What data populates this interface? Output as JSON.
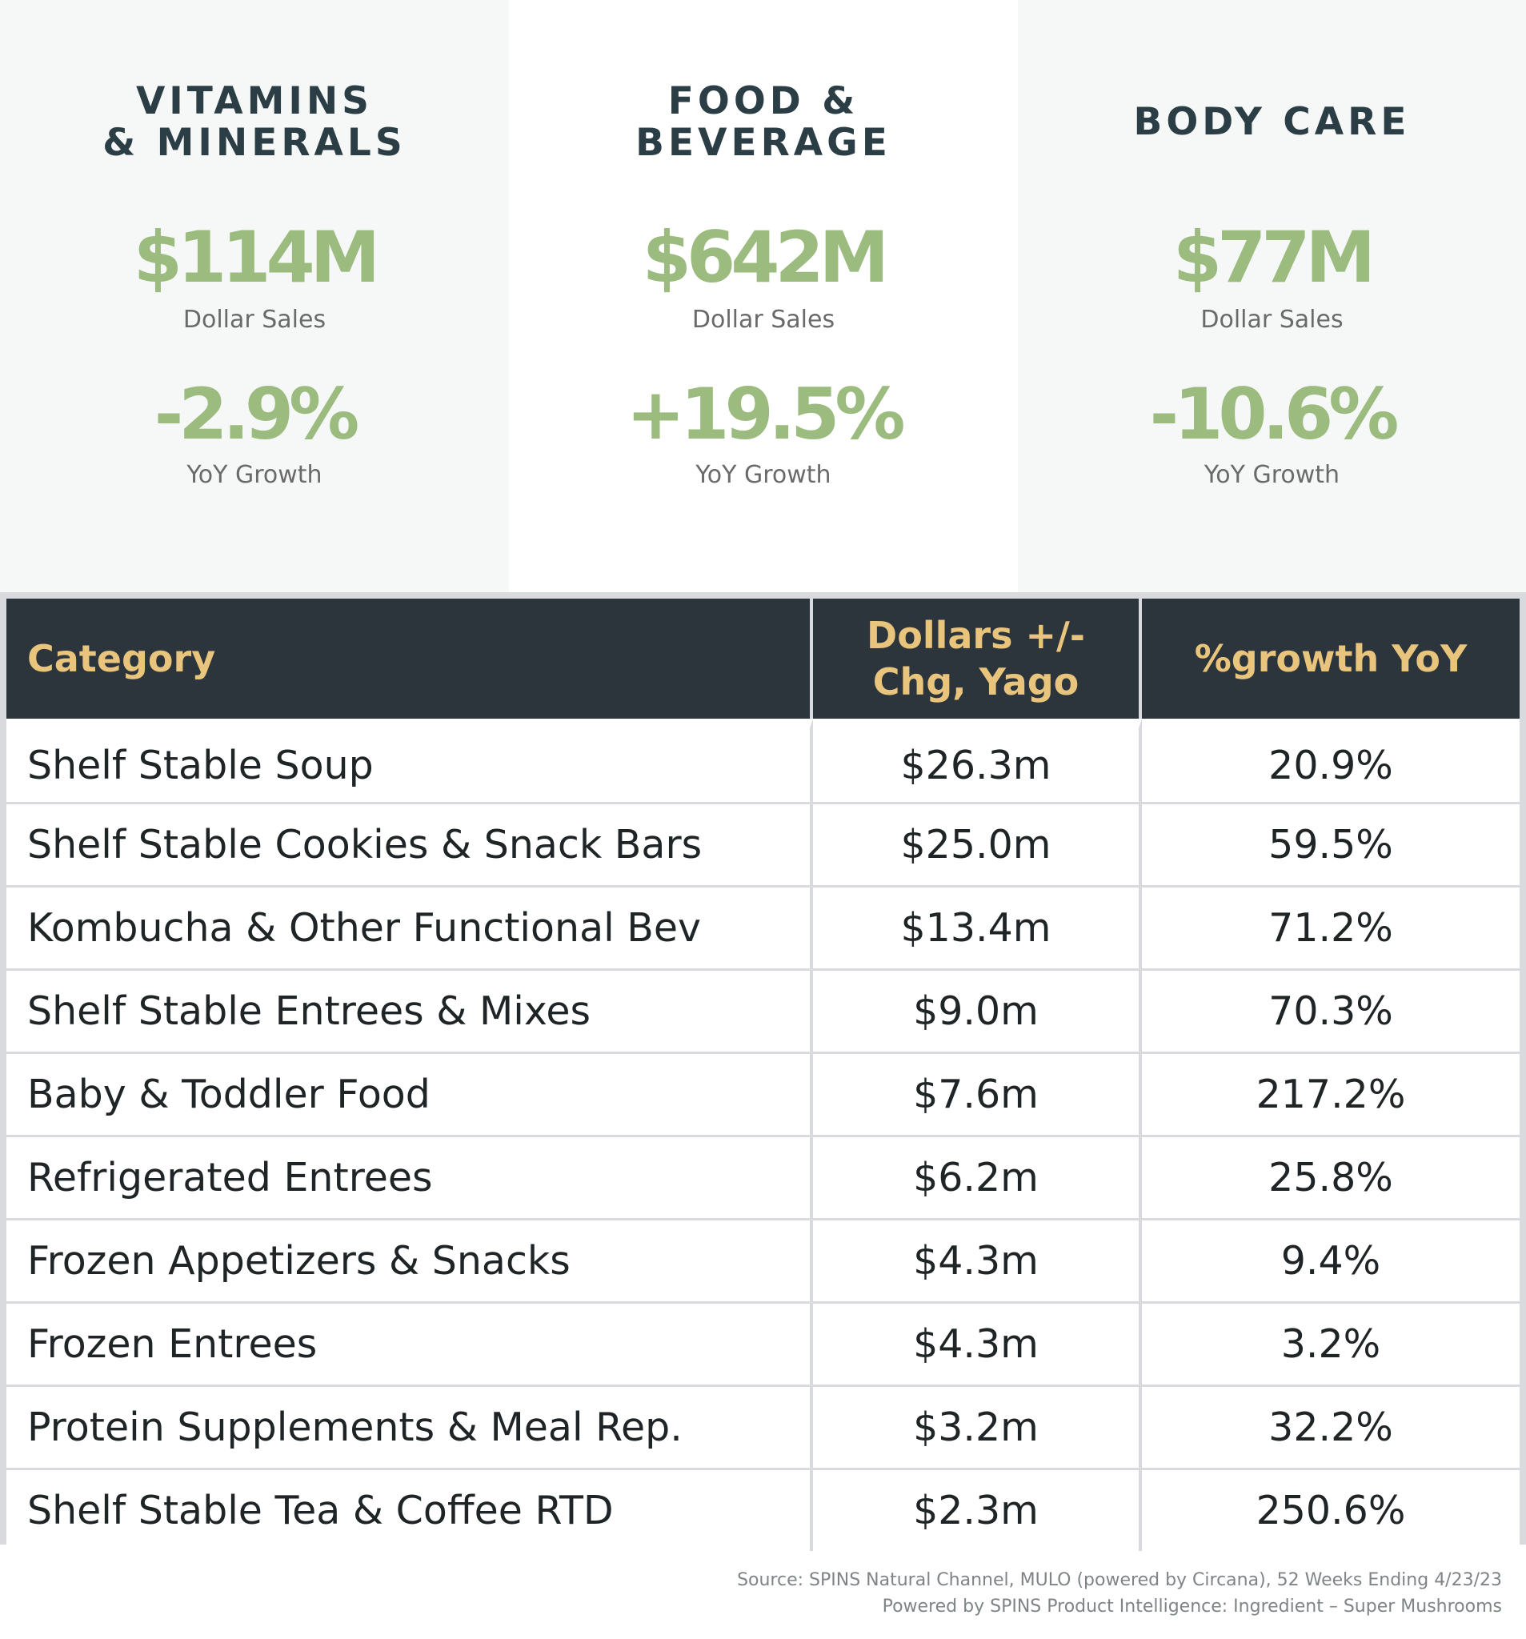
{
  "panels": [
    {
      "title": "VITAMINS\n& MINERALS",
      "sales": "$114M",
      "sales_label": "Dollar Sales",
      "growth": "-2.9%",
      "growth_label": "YoY Growth"
    },
    {
      "title": "FOOD &\nBEVERAGE",
      "sales": "$642M",
      "sales_label": "Dollar Sales",
      "growth": "+19.5%",
      "growth_label": "YoY Growth"
    },
    {
      "title": "BODY CARE",
      "sales": "$77M",
      "sales_label": "Dollar Sales",
      "growth": "-10.6%",
      "growth_label": "YoY Growth"
    }
  ],
  "table": {
    "headers": [
      "Category",
      "Dollars +/-\nChg, Yago",
      "%growth YoY"
    ],
    "rows": [
      [
        "Shelf Stable Soup",
        "$26.3m",
        "20.9%"
      ],
      [
        "Shelf Stable Cookies & Snack Bars",
        "$25.0m",
        "59.5%"
      ],
      [
        "Kombucha & Other Functional Bev",
        "$13.4m",
        "71.2%"
      ],
      [
        "Shelf Stable Entrees & Mixes",
        "$9.0m",
        "70.3%"
      ],
      [
        "Baby & Toddler Food",
        "$7.6m",
        "217.2%"
      ],
      [
        "Refrigerated Entrees",
        "$6.2m",
        "25.8%"
      ],
      [
        "Frozen Appetizers & Snacks",
        "$4.3m",
        "9.4%"
      ],
      [
        "Frozen Entrees",
        "$4.3m",
        "3.2%"
      ],
      [
        "Protein Supplements & Meal Rep.",
        "$3.2m",
        "32.2%"
      ],
      [
        "Shelf Stable Tea & Coffee RTD",
        "$2.3m",
        "250.6%"
      ]
    ]
  },
  "source": {
    "line1": "Source: SPINS Natural Channel, MULO (powered by Circana), 52 Weeks Ending 4/23/23",
    "line2": "Powered by SPINS Product Intelligence: Ingredient – Super Mushrooms"
  },
  "colors": {
    "title": "#2c3e45",
    "accent_green": "#9bbc7e",
    "header_bg": "#2c353b",
    "header_text": "#e8c47c",
    "panel_bg": "#f6f7f7",
    "grid_line": "#d9dadd"
  }
}
